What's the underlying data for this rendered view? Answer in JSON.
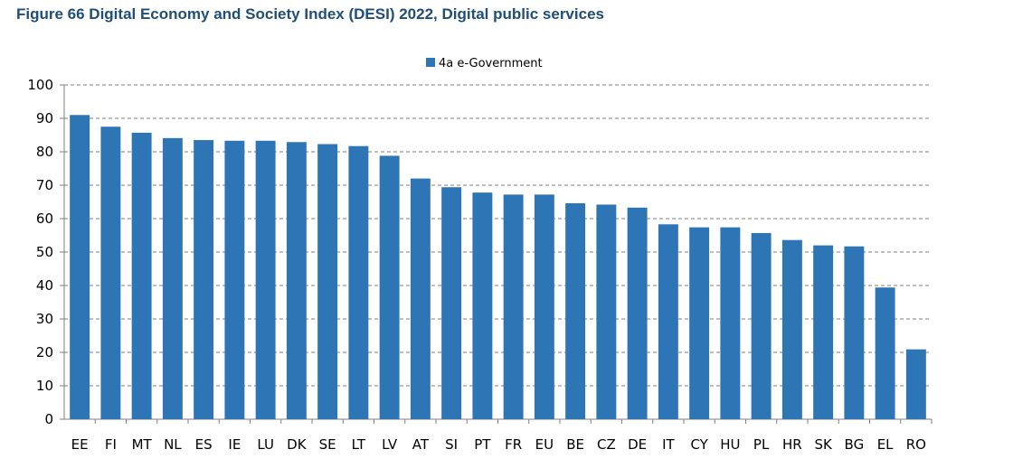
{
  "title": "Figure 66 Digital Economy and Society Index (DESI) 2022, Digital public services",
  "chart_data": {
    "type": "bar",
    "title": "Figure 66 Digital Economy and Society Index (DESI) 2022, Digital public services",
    "xlabel": "",
    "ylabel": "",
    "ylim": [
      0,
      100
    ],
    "yticks": [
      0,
      10,
      20,
      30,
      40,
      50,
      60,
      70,
      80,
      90,
      100
    ],
    "grid": true,
    "legend_position": "top-center",
    "categories": [
      "EE",
      "FI",
      "MT",
      "NL",
      "ES",
      "IE",
      "LU",
      "DK",
      "SE",
      "LT",
      "LV",
      "AT",
      "SI",
      "PT",
      "FR",
      "EU",
      "BE",
      "CZ",
      "DE",
      "IT",
      "CY",
      "HU",
      "PL",
      "HR",
      "SK",
      "BG",
      "EL",
      "RO"
    ],
    "series": [
      {
        "name": "4a e-Government",
        "color": "#2e75b6",
        "values": [
          91.0,
          87.5,
          85.7,
          84.1,
          83.5,
          83.3,
          83.3,
          82.9,
          82.3,
          81.7,
          78.8,
          72.0,
          69.4,
          67.8,
          67.2,
          67.2,
          64.6,
          64.2,
          63.3,
          58.3,
          57.4,
          57.4,
          55.7,
          53.6,
          52.0,
          51.7,
          39.4,
          20.9
        ]
      }
    ]
  }
}
